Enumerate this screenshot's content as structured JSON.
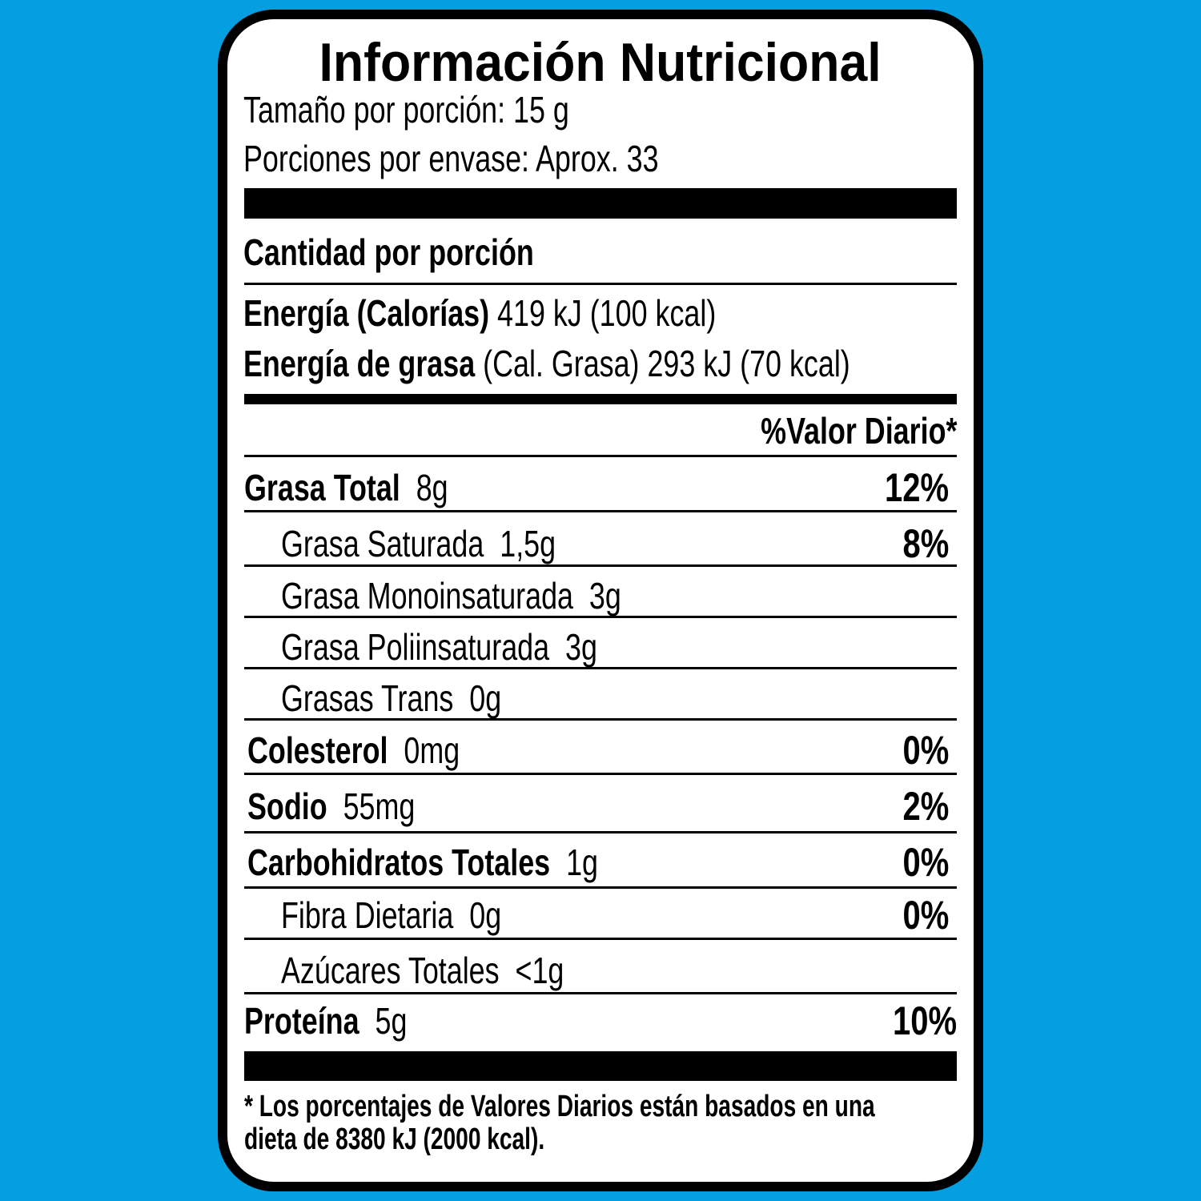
{
  "colors": {
    "background": "#049fe0",
    "label": "#ffffff",
    "ink": "#000000"
  },
  "title": "Información Nutricional",
  "serving_size": "Tamaño por porción: 15 g",
  "servings_per_container": "Porciones por envase: Aprox. 33",
  "amount_per_serving": "Cantidad por porción",
  "energy": {
    "label": "Energía (Calorías)",
    "value": "419 kJ (100 kcal)"
  },
  "fat_energy": {
    "label": "Energía de grasa",
    "note": "(Cal. Grasa)",
    "value": "293 kJ (70 kcal)"
  },
  "dv_header": "%Valor Diario*",
  "nutrients": [
    {
      "name": "Grasa Total",
      "amount": "8g",
      "dv": "12%",
      "bold": true,
      "indent": false
    },
    {
      "name": "Grasa Saturada",
      "amount": "1,5g",
      "dv": "8%",
      "bold": false,
      "indent": true
    },
    {
      "name": "Grasa Monoinsaturada",
      "amount": "3g",
      "dv": "",
      "bold": false,
      "indent": true
    },
    {
      "name": "Grasa Poliinsaturada",
      "amount": "3g",
      "dv": "",
      "bold": false,
      "indent": true
    },
    {
      "name": "Grasas Trans",
      "amount": "0g",
      "dv": "",
      "bold": false,
      "indent": true
    },
    {
      "name": "Colesterol",
      "amount": "0mg",
      "dv": "0%",
      "bold": true,
      "indent": false
    },
    {
      "name": "Sodio",
      "amount": "55mg",
      "dv": "2%",
      "bold": true,
      "indent": false
    },
    {
      "name": "Carbohidratos Totales",
      "amount": "1g",
      "dv": "0%",
      "bold": true,
      "indent": false
    },
    {
      "name": "Fibra Dietaria",
      "amount": "0g",
      "dv": "0%",
      "bold": false,
      "indent": true
    },
    {
      "name": "Azúcares Totales",
      "amount": "<1g",
      "dv": "",
      "bold": false,
      "indent": true
    },
    {
      "name": "Proteína",
      "amount": "5g",
      "dv": "10%",
      "bold": true,
      "indent": false
    }
  ],
  "footnote": {
    "line1": "* Los porcentajes de Valores Diarios están basados en una",
    "line2": "dieta de 8380 kJ (2000 kcal)."
  }
}
